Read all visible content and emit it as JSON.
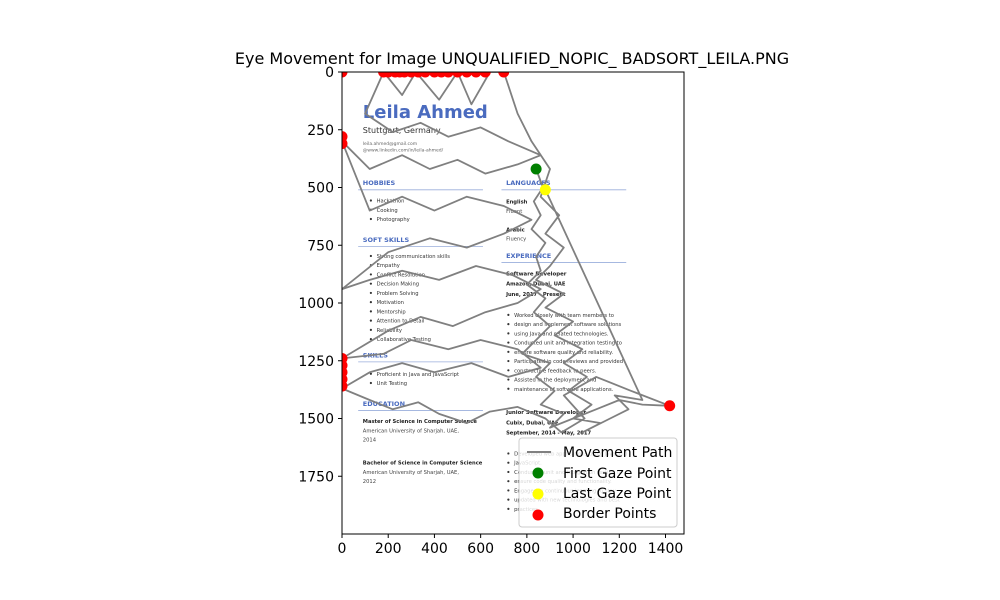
{
  "chart_data": {
    "type": "scatter",
    "title": "Eye Movement for Image UNQUALIFIED_NOPIC_ BADSORT_LEILA.PNG",
    "xlabel": "",
    "ylabel": "",
    "xlim": [
      0,
      1480
    ],
    "ylim": [
      2000,
      0
    ],
    "x_ticks": [
      0,
      200,
      400,
      600,
      800,
      1000,
      1200,
      1400
    ],
    "y_ticks": [
      0,
      250,
      500,
      750,
      1000,
      1250,
      1500,
      1750
    ],
    "grid": false,
    "legend_position": "lower-right",
    "legend": {
      "movement": "Movement Path",
      "first": "First Gaze Point",
      "last": "Last Gaze Point",
      "border": "Border Points"
    },
    "colors": {
      "path": "#808080",
      "first": "#008000",
      "last": "#ffff00",
      "border": "#ff0000"
    },
    "background_image_extent": {
      "x": [
        0,
        1240
      ],
      "y": [
        2000,
        0
      ]
    },
    "series": [
      {
        "name": "Movement Path",
        "points": [
          [
            840,
            420
          ],
          [
            870,
            500
          ],
          [
            830,
            560
          ],
          [
            860,
            620
          ],
          [
            820,
            680
          ],
          [
            880,
            740
          ],
          [
            840,
            800
          ],
          [
            860,
            860
          ],
          [
            800,
            920
          ],
          [
            880,
            980
          ],
          [
            830,
            1040
          ],
          [
            900,
            1100
          ],
          [
            840,
            1160
          ],
          [
            780,
            1220
          ],
          [
            900,
            1260
          ],
          [
            840,
            1320
          ],
          [
            920,
            1380
          ],
          [
            860,
            1440
          ],
          [
            960,
            1480
          ],
          [
            900,
            1540
          ],
          [
            1000,
            1500
          ],
          [
            1100,
            1460
          ],
          [
            1200,
            1420
          ],
          [
            1300,
            1440
          ],
          [
            1418,
            1445
          ],
          [
            1250,
            1380
          ],
          [
            1100,
            1320
          ],
          [
            960,
            1400
          ],
          [
            1050,
            1500
          ],
          [
            950,
            1560
          ],
          [
            880,
            1500
          ],
          [
            760,
            1450
          ],
          [
            640,
            1470
          ],
          [
            540,
            1520
          ],
          [
            420,
            1480
          ],
          [
            330,
            1430
          ],
          [
            220,
            1460
          ],
          [
            120,
            1420
          ],
          [
            0,
            1370
          ],
          [
            120,
            1300
          ],
          [
            260,
            1260
          ],
          [
            400,
            1300
          ],
          [
            560,
            1260
          ],
          [
            720,
            1320
          ],
          [
            860,
            1280
          ],
          [
            760,
            1200
          ],
          [
            600,
            1160
          ],
          [
            460,
            1200
          ],
          [
            300,
            1160
          ],
          [
            180,
            1220
          ],
          [
            0,
            1240
          ],
          [
            200,
            1120
          ],
          [
            340,
            1060
          ],
          [
            480,
            1100
          ],
          [
            620,
            1040
          ],
          [
            760,
            1000
          ],
          [
            860,
            940
          ],
          [
            740,
            880
          ],
          [
            580,
            840
          ],
          [
            420,
            900
          ],
          [
            260,
            860
          ],
          [
            120,
            900
          ],
          [
            0,
            940
          ],
          [
            200,
            780
          ],
          [
            380,
            720
          ],
          [
            540,
            760
          ],
          [
            700,
            700
          ],
          [
            820,
            640
          ],
          [
            700,
            580
          ],
          [
            540,
            540
          ],
          [
            400,
            600
          ],
          [
            260,
            540
          ],
          [
            120,
            600
          ],
          [
            0,
            300
          ],
          [
            120,
            420
          ],
          [
            260,
            360
          ],
          [
            380,
            420
          ],
          [
            500,
            380
          ],
          [
            620,
            440
          ],
          [
            760,
            400
          ],
          [
            860,
            360
          ],
          [
            720,
            300
          ],
          [
            600,
            240
          ],
          [
            460,
            280
          ],
          [
            340,
            220
          ],
          [
            220,
            260
          ],
          [
            100,
            180
          ],
          [
            180,
            0
          ],
          [
            260,
            100
          ],
          [
            320,
            0
          ],
          [
            420,
            120
          ],
          [
            500,
            0
          ],
          [
            560,
            140
          ],
          [
            640,
            0
          ],
          [
            700,
            0
          ],
          [
            760,
            180
          ],
          [
            820,
            300
          ],
          [
            900,
            420
          ],
          [
            860,
            540
          ],
          [
            940,
            620
          ],
          [
            880,
            700
          ],
          [
            960,
            760
          ],
          [
            900,
            840
          ],
          [
            840,
            900
          ],
          [
            960,
            960
          ],
          [
            880,
            1020
          ],
          [
            1000,
            1080
          ],
          [
            920,
            1140
          ],
          [
            1040,
            1200
          ],
          [
            960,
            1260
          ],
          [
            1060,
            1320
          ],
          [
            980,
            1380
          ],
          [
            1080,
            1440
          ],
          [
            1000,
            1500
          ],
          [
            1120,
            1520
          ],
          [
            1040,
            1560
          ],
          [
            1160,
            1500
          ],
          [
            1240,
            1460
          ],
          [
            1180,
            1400
          ],
          [
            1300,
            1420
          ],
          [
            880,
            510
          ]
        ]
      },
      {
        "name": "First Gaze Point",
        "points": [
          [
            840,
            420
          ]
        ]
      },
      {
        "name": "Last Gaze Point",
        "points": [
          [
            880,
            510
          ]
        ]
      },
      {
        "name": "Border Points",
        "points": [
          [
            0,
            0
          ],
          [
            0,
            280
          ],
          [
            0,
            310
          ],
          [
            0,
            1240
          ],
          [
            0,
            1270
          ],
          [
            0,
            1300
          ],
          [
            0,
            1330
          ],
          [
            0,
            1360
          ],
          [
            180,
            0
          ],
          [
            200,
            0
          ],
          [
            230,
            0
          ],
          [
            250,
            0
          ],
          [
            270,
            0
          ],
          [
            300,
            0
          ],
          [
            330,
            0
          ],
          [
            360,
            0
          ],
          [
            400,
            0
          ],
          [
            430,
            0
          ],
          [
            460,
            0
          ],
          [
            500,
            0
          ],
          [
            540,
            0
          ],
          [
            580,
            0
          ],
          [
            620,
            0
          ],
          [
            700,
            0
          ],
          [
            1418,
            1445
          ]
        ]
      }
    ]
  },
  "resume": {
    "name": "Leila Ahmed",
    "location": "Stuttgart, Germany",
    "email": "leila.ahmed@gmail.com",
    "linkedin": "@www.linkedin.com/in/leila-ahmed/",
    "hobbies_title": "HOBBIES",
    "hobbies": [
      "Hackathon",
      "Cooking",
      "Photography"
    ],
    "languages_title": "LANGUAGES",
    "languages": [
      {
        "name": "English",
        "level": "Fluent"
      },
      {
        "name": "Arabic",
        "level": "Fluency"
      }
    ],
    "soft_skills_title": "SOFT SKILLS",
    "soft_skills": [
      "Strong communication skills",
      "Empathy",
      "Conflict Resolution",
      "Decision Making",
      "Problem Solving",
      "Motivation",
      "Mentorship",
      "Attention to Detail",
      "Reliability",
      "Collaborative Testing"
    ],
    "skills_title": "SKILLS",
    "skills": [
      "Proficient in Java and JavaScript",
      "Unit Testing"
    ],
    "education_title": "EDUCATION",
    "education": [
      {
        "degree": "Master of Science in Computer Science",
        "school": "American University of Sharjah, UAE,",
        "year": "2014"
      },
      {
        "degree": "Bachelor of Science in Computer Science",
        "school": "American University of Sharjah, UAE,",
        "year": "2012"
      }
    ],
    "experience_title": "EXPERIENCE",
    "jobs": [
      {
        "title": "Software Developer",
        "company": "Amazon, Dubai, UAE",
        "dates": "June, 2017 - Present",
        "bullets": [
          "Worked closely with team members to",
          "design and implement software solutions",
          "using Java and related technologies.",
          "Conducted unit and integration testing to",
          "ensure software quality and reliability.",
          "Participated in code reviews and provided",
          "constructive feedback to peers.",
          "Assisted in the deployment and",
          "maintenance of software applications."
        ]
      },
      {
        "title": "Junior Software Developer",
        "company": "Cubix, Dubai, UAE",
        "dates": "September, 2014 - May, 2017",
        "bullets": [
          "Developed web applications using Java and",
          "JavaScript.",
          "Conducted unit and integration testing to",
          "ensure code quality and functionality.",
          "Engaged in continuous learning to stay",
          "updated with new technologies and best",
          "practices."
        ]
      }
    ]
  }
}
